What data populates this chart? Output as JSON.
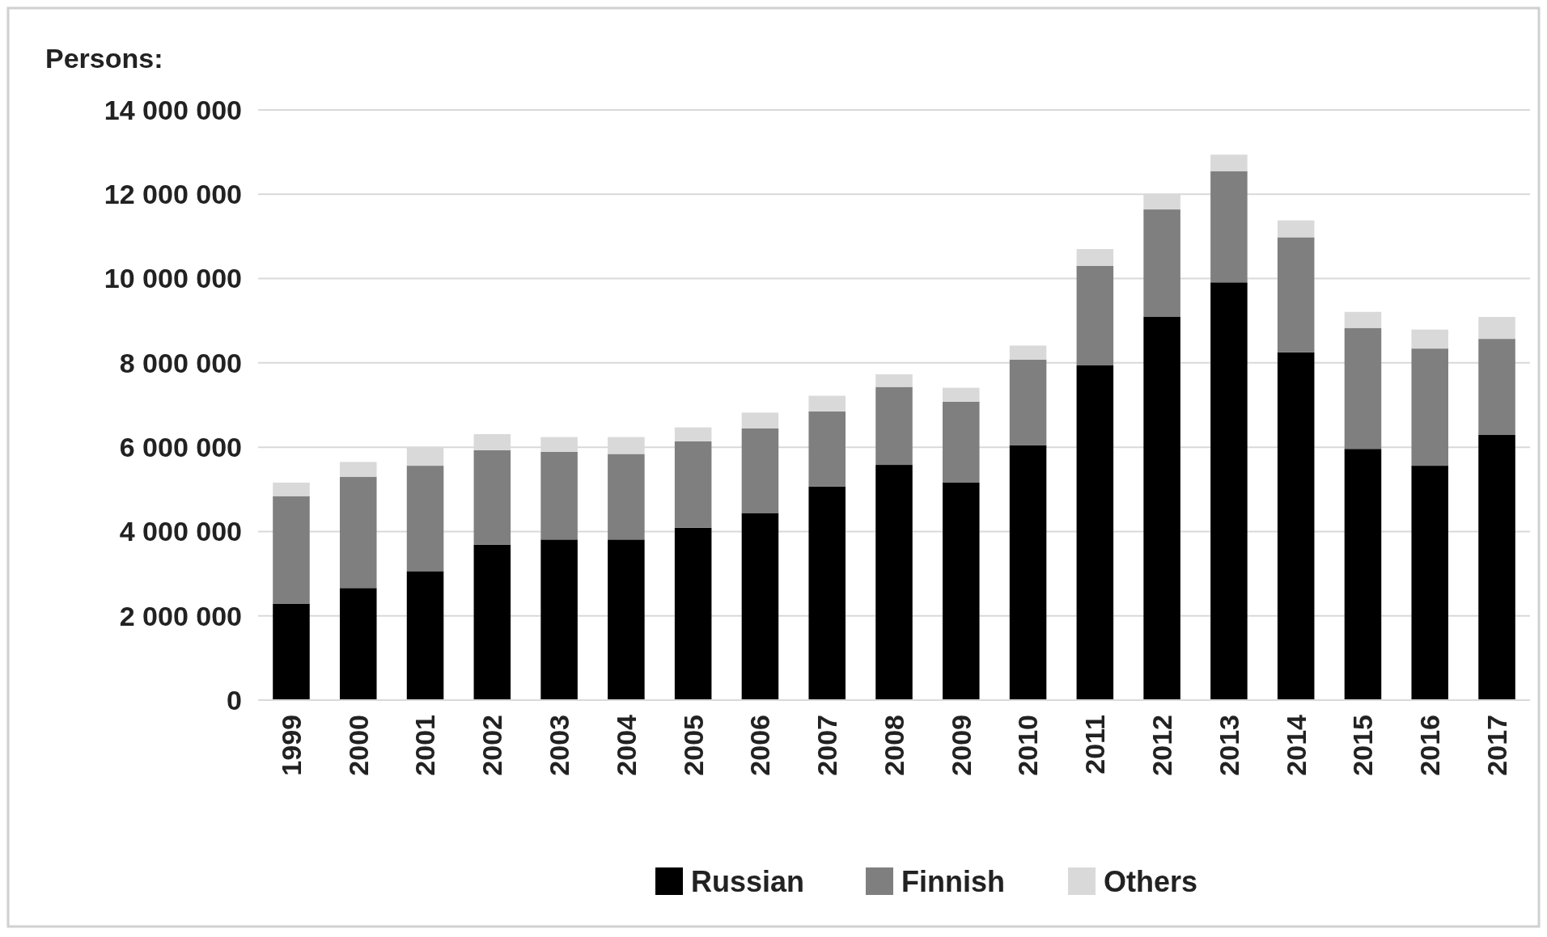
{
  "chart_data": {
    "type": "bar",
    "ylabel": "Persons:",
    "stacked": true,
    "categories": [
      "1999",
      "2000",
      "2001",
      "2002",
      "2003",
      "2004",
      "2005",
      "2006",
      "2007",
      "2008",
      "2009",
      "2010",
      "2011",
      "2012",
      "2013",
      "2014",
      "2015",
      "2016",
      "2017"
    ],
    "series": [
      {
        "name": "Russian",
        "color": "#000000",
        "values": [
          2290000,
          2660000,
          3060000,
          3690000,
          3810000,
          3810000,
          4090000,
          4440000,
          5070000,
          5580000,
          5160000,
          6050000,
          7940000,
          9090000,
          9910000,
          8250000,
          5960000,
          5560000,
          6290000
        ]
      },
      {
        "name": "Finnish",
        "color": "#7f7f7f",
        "values": [
          2550000,
          2640000,
          2500000,
          2240000,
          2080000,
          2030000,
          2050000,
          2010000,
          1780000,
          1850000,
          1920000,
          2030000,
          2360000,
          2550000,
          2640000,
          2730000,
          2870000,
          2780000,
          2280000
        ]
      },
      {
        "name": "Others",
        "color": "#d9d9d9",
        "values": [
          320000,
          350000,
          440000,
          380000,
          350000,
          400000,
          330000,
          370000,
          370000,
          300000,
          330000,
          330000,
          400000,
          370000,
          390000,
          400000,
          380000,
          450000,
          520000
        ]
      }
    ],
    "ylim": [
      0,
      14000000
    ],
    "yticks": [
      {
        "value": 0,
        "label": "0"
      },
      {
        "value": 2000000,
        "label": "2 000 000"
      },
      {
        "value": 4000000,
        "label": "4 000 000"
      },
      {
        "value": 6000000,
        "label": "6 000 000"
      },
      {
        "value": 8000000,
        "label": "8 000 000"
      },
      {
        "value": 10000000,
        "label": "10 000 000"
      },
      {
        "value": 12000000,
        "label": "12 000 000"
      },
      {
        "value": 14000000,
        "label": "14 000 000"
      }
    ],
    "grid": "y",
    "legend": "bottom"
  }
}
